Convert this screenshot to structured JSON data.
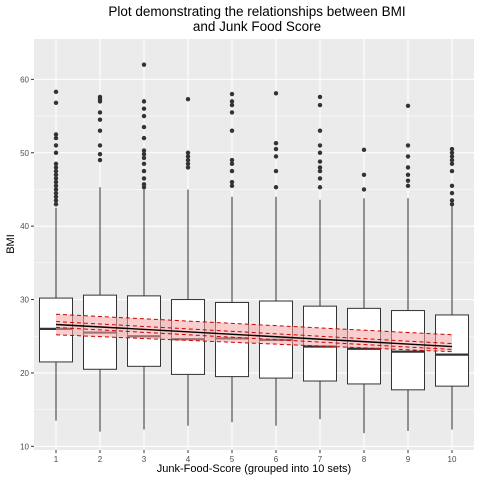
{
  "chart_data": {
    "type": "box",
    "title_lines": [
      "Plot demonstrating the relationships between BMI",
      "and Junk Food Score"
    ],
    "xlabel": "Junk-Food-Score (grouped into 10 sets)",
    "ylabel": "BMI",
    "categories": [
      "1",
      "2",
      "3",
      "4",
      "5",
      "6",
      "7",
      "8",
      "9",
      "10"
    ],
    "ylim": [
      9.5,
      65.5
    ],
    "yticks": [
      10,
      20,
      30,
      40,
      50,
      60
    ],
    "grid": true,
    "colors": {
      "panel": "#ebebeb",
      "grid_major": "#ffffff",
      "box_fill": "#ffffff",
      "box_line": "#333333",
      "outlier": "#333333",
      "regression_line": "#000000",
      "confidence_band": "#f4a6a6",
      "confidence_dash": "#cc0000"
    },
    "boxes": [
      {
        "group": "1",
        "lower_whisker": 13.5,
        "q1": 21.5,
        "median": 26.0,
        "q3": 30.2,
        "upper_whisker": 42.5,
        "outliers": [
          43.0,
          43.5,
          44.0,
          44.5,
          45.0,
          45.5,
          46.0,
          46.5,
          47.0,
          47.5,
          48.0,
          48.5,
          50.0,
          51.0,
          52.0,
          52.5,
          56.8,
          58.3
        ]
      },
      {
        "group": "2",
        "lower_whisker": 12.0,
        "q1": 20.5,
        "median": 25.5,
        "q3": 30.6,
        "upper_whisker": 45.3,
        "outliers": [
          49.0,
          49.8,
          51.0,
          53.0,
          54.5,
          55.5,
          57.0,
          57.3,
          57.6
        ]
      },
      {
        "group": "3",
        "lower_whisker": 12.3,
        "q1": 20.9,
        "median": 25.0,
        "q3": 30.5,
        "upper_whisker": 45.0,
        "outliers": [
          45.3,
          45.7,
          46.5,
          47.5,
          48.5,
          49.3,
          49.8,
          50.3,
          52.0,
          53.5,
          55.0,
          56.0,
          57.0,
          62.0
        ]
      },
      {
        "group": "4",
        "lower_whisker": 12.8,
        "q1": 19.8,
        "median": 24.6,
        "q3": 30.0,
        "upper_whisker": 45.0,
        "outliers": [
          48.0,
          48.5,
          49.0,
          49.5,
          50.0,
          57.3
        ]
      },
      {
        "group": "5",
        "lower_whisker": 13.3,
        "q1": 19.5,
        "median": 24.7,
        "q3": 29.6,
        "upper_whisker": 44.0,
        "outliers": [
          45.5,
          46.0,
          47.5,
          48.5,
          49.0,
          53.0,
          55.5,
          56.5,
          57.0,
          58.0
        ]
      },
      {
        "group": "6",
        "lower_whisker": 12.8,
        "q1": 19.3,
        "median": 24.5,
        "q3": 29.8,
        "upper_whisker": 44.0,
        "outliers": [
          45.3,
          47.5,
          49.5,
          50.5,
          51.3,
          58.1
        ]
      },
      {
        "group": "7",
        "lower_whisker": 13.7,
        "q1": 18.9,
        "median": 23.6,
        "q3": 29.1,
        "upper_whisker": 43.6,
        "outliers": [
          45.3,
          46.5,
          47.5,
          48.0,
          48.8,
          50.0,
          51.0,
          53.0,
          56.5,
          57.6
        ]
      },
      {
        "group": "8",
        "lower_whisker": 11.8,
        "q1": 18.5,
        "median": 23.3,
        "q3": 28.8,
        "upper_whisker": 43.8,
        "outliers": [
          45.0,
          47.0,
          50.4
        ]
      },
      {
        "group": "9",
        "lower_whisker": 12.1,
        "q1": 17.7,
        "median": 22.9,
        "q3": 28.5,
        "upper_whisker": 43.8,
        "outliers": [
          45.5,
          46.2,
          47.0,
          48.0,
          49.5,
          51.0,
          56.4
        ]
      },
      {
        "group": "10",
        "lower_whisker": 12.3,
        "q1": 18.2,
        "median": 22.5,
        "q3": 27.9,
        "upper_whisker": 42.8,
        "outliers": [
          43.0,
          43.5,
          44.5,
          45.5,
          47.5,
          48.5,
          49.0,
          49.5,
          50.0,
          50.5
        ]
      }
    ],
    "regression": {
      "x": [
        1,
        10
      ],
      "fit": [
        26.6,
        23.6
      ],
      "upper": [
        28.0,
        25.2
      ],
      "lower": [
        25.2,
        22.9
      ],
      "inner_upper": [
        27.0,
        24.0
      ],
      "inner_lower": [
        26.2,
        23.2
      ]
    }
  }
}
